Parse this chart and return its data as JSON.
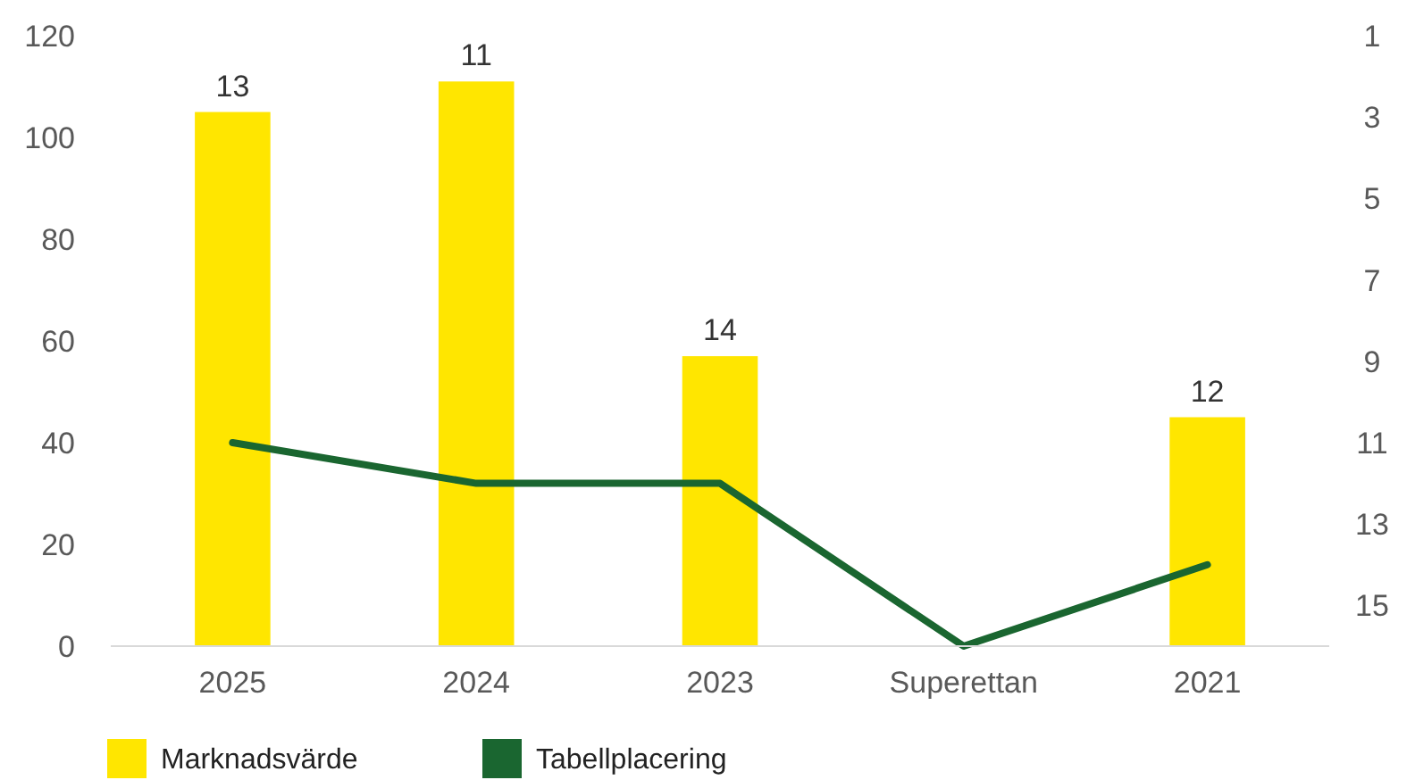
{
  "chart_data": {
    "type": "bar",
    "categories": [
      "2025",
      "2024",
      "2023",
      "Superettan",
      "2021"
    ],
    "series": [
      {
        "name": "Marknadsvärde",
        "color": "#ffe600",
        "values": [
          105,
          111,
          57,
          null,
          45
        ]
      },
      {
        "name": "Tabellplacering",
        "type": "line",
        "axis": "y2",
        "color": "#1a6630",
        "values": [
          11,
          12,
          12,
          16,
          14
        ]
      }
    ],
    "ylim": [
      0,
      120
    ],
    "yticks": [
      0,
      20,
      40,
      60,
      80,
      100,
      120
    ],
    "y2lim": [
      16,
      1
    ],
    "y2ticks": [
      1,
      3,
      5,
      7,
      9,
      11,
      13,
      15
    ],
    "annotations": [
      {
        "text": "13",
        "x": "2025",
        "y": 105
      },
      {
        "text": "11",
        "x": "2024",
        "y": 111
      },
      {
        "text": "14",
        "x": "2023",
        "y": 57
      },
      {
        "text": "12",
        "x": "2021",
        "y": 45
      }
    ],
    "grid": false,
    "legend": "bottom left",
    "marker": "none",
    "line_style": "solid"
  }
}
